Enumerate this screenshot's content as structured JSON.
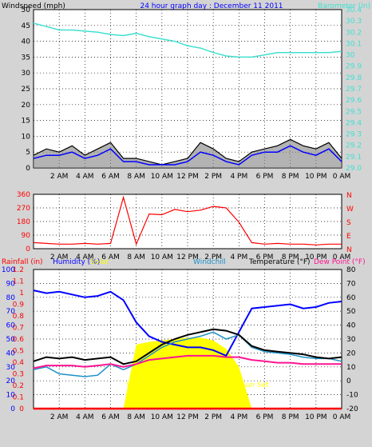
{
  "header": {
    "title": "24 hour graph day : December 11 2011",
    "left_label": "Windspeed (mph)",
    "right_label": "Barometer (in)"
  },
  "colors": {
    "background": "#d4d4d4",
    "plot_bg": "#ffffff",
    "wind": "#000000",
    "wind_avg": "#0000ff",
    "wind_gust_fill": "#808080",
    "barometer": "#40e0d0",
    "direction": "#ff0000",
    "humidity": "#0000ff",
    "solar": "#ffff00",
    "windchill": "#1e90c8",
    "temperature": "#000000",
    "dewpoint": "#ff1493",
    "rainfall": "#ff0000"
  },
  "x_ticks": [
    "2 AM",
    "4 AM",
    "6 AM",
    "8 AM",
    "10 AM",
    "12 PM",
    "2 PM",
    "4 PM",
    "6 PM",
    "8 PM",
    "10 PM",
    "0 AM"
  ],
  "chart_data": [
    {
      "type": "line",
      "id": "wind",
      "title": "24 hour graph day : December 11 2011",
      "xlabel": "",
      "ylabel": "Windspeed (mph)",
      "y2label": "Barometer (in)",
      "x": [
        0,
        1,
        2,
        3,
        4,
        5,
        6,
        7,
        8,
        9,
        10,
        11,
        12,
        13,
        14,
        15,
        16,
        17,
        18,
        19,
        20,
        21,
        22,
        23,
        24
      ],
      "ylim": [
        0,
        50
      ],
      "y_ticks": [
        0,
        5,
        10,
        15,
        20,
        25,
        30,
        35,
        40,
        45,
        50
      ],
      "y2lim": [
        29.0,
        30.4
      ],
      "y2_ticks": [
        "29.0",
        "29.1",
        "29.2",
        "29.3",
        "29.4",
        "29.5",
        "29.6",
        "29.7",
        "29.8",
        "29.9",
        "30",
        "30.1",
        "30.2",
        "30.3",
        "30.4"
      ],
      "series": [
        {
          "values": [
            4,
            6,
            5,
            7,
            4,
            6,
            8,
            3,
            3,
            2,
            1,
            2,
            3,
            8,
            6,
            3,
            2,
            5,
            6,
            7,
            9,
            7,
            6,
            8,
            3
          ]
        },
        {
          "values": [
            3,
            4,
            4,
            5,
            3,
            4,
            6,
            2,
            2,
            1,
            1,
            1,
            2,
            5,
            4,
            2,
            1,
            4,
            5,
            5,
            7,
            5,
            4,
            6,
            2
          ]
        },
        {
          "axis": "right",
          "values": [
            30.28,
            30.25,
            30.22,
            30.22,
            30.21,
            30.2,
            30.18,
            30.17,
            30.19,
            30.16,
            30.14,
            30.12,
            30.08,
            30.06,
            30.02,
            29.99,
            29.98,
            29.98,
            30.0,
            30.02,
            30.02,
            30.02,
            30.02,
            30.02,
            30.03
          ]
        }
      ]
    },
    {
      "type": "line",
      "id": "direction",
      "ylim": [
        0,
        360
      ],
      "y_ticks": [
        0,
        90,
        180,
        270,
        360
      ],
      "compass": [
        "N",
        "W",
        "S",
        "E",
        "N"
      ],
      "x": [
        0,
        1,
        2,
        3,
        4,
        5,
        6,
        7,
        8,
        9,
        10,
        11,
        12,
        13,
        14,
        15,
        16,
        17,
        18,
        19,
        20,
        21,
        22,
        23,
        24
      ],
      "series": [
        {
          "values": [
            40,
            35,
            30,
            30,
            35,
            30,
            35,
            340,
            30,
            230,
            225,
            260,
            245,
            255,
            280,
            270,
            175,
            40,
            30,
            35,
            30,
            30,
            25,
            30,
            30
          ]
        }
      ]
    },
    {
      "type": "line",
      "id": "temperature",
      "labels": {
        "rainfall": "Rainfall (in)",
        "humidity": "Humidity (%)",
        "solar": "Solar",
        "windchill": "Windchill",
        "temperature": "Temperature (°F)",
        "dewpoint": "Dew Point (°F)"
      },
      "annotations": {
        "sunrise": "Sun Rise",
        "sunset": "Sun Set"
      },
      "x": [
        0,
        1,
        2,
        3,
        4,
        5,
        6,
        7,
        8,
        9,
        10,
        11,
        12,
        13,
        14,
        15,
        16,
        17,
        18,
        19,
        20,
        21,
        22,
        23,
        24
      ],
      "humidity_lim": [
        0,
        100
      ],
      "humidity_ticks": [
        0,
        10,
        20,
        30,
        40,
        50,
        60,
        70,
        80,
        90,
        100
      ],
      "rain_lim": [
        0,
        1.2
      ],
      "rain_ticks": [
        "0",
        "0.1",
        "0.2",
        "0.3",
        "0.4",
        "0.5",
        "0.6",
        "0.7",
        "0.8",
        "0.9",
        "1",
        "1.1",
        "1.2"
      ],
      "temp_lim": [
        -20,
        80
      ],
      "temp_ticks": [
        -20,
        -10,
        0,
        10,
        20,
        30,
        40,
        50,
        60,
        70,
        80
      ],
      "series": [
        {
          "id": "humidity",
          "values": [
            85,
            83,
            84,
            82,
            80,
            81,
            84,
            78,
            62,
            52,
            48,
            46,
            44,
            44,
            42,
            38,
            55,
            72,
            73,
            74,
            75,
            72,
            73,
            76,
            77
          ]
        },
        {
          "id": "temperature",
          "values": [
            14,
            17,
            16,
            17,
            15,
            16,
            17,
            12,
            14,
            20,
            26,
            30,
            33,
            35,
            37,
            36,
            33,
            25,
            22,
            21,
            20,
            19,
            17,
            16,
            17
          ]
        },
        {
          "id": "windchill",
          "values": [
            8,
            10,
            5,
            4,
            3,
            4,
            12,
            8,
            12,
            18,
            24,
            28,
            30,
            32,
            35,
            30,
            33,
            24,
            21,
            20,
            19,
            17,
            16,
            16,
            14
          ]
        },
        {
          "id": "dewpoint",
          "values": [
            9,
            11,
            11,
            11,
            10,
            11,
            12,
            10,
            12,
            15,
            16,
            17,
            18,
            18,
            18,
            17,
            17,
            15,
            14,
            13,
            13,
            12,
            12,
            12,
            12
          ]
        },
        {
          "id": "solar",
          "values": [
            0,
            0,
            0,
            0,
            0,
            0,
            0,
            0,
            46,
            48,
            49,
            50,
            51,
            51,
            49,
            43,
            30,
            0,
            0,
            0,
            0,
            0,
            0,
            0,
            0
          ]
        },
        {
          "id": "rainfall",
          "values": [
            0,
            0,
            0,
            0,
            0,
            0,
            0,
            0,
            0,
            0,
            0,
            0,
            0,
            0,
            0,
            0,
            0,
            0,
            0,
            0,
            0,
            0,
            0,
            0,
            0
          ]
        }
      ]
    }
  ]
}
